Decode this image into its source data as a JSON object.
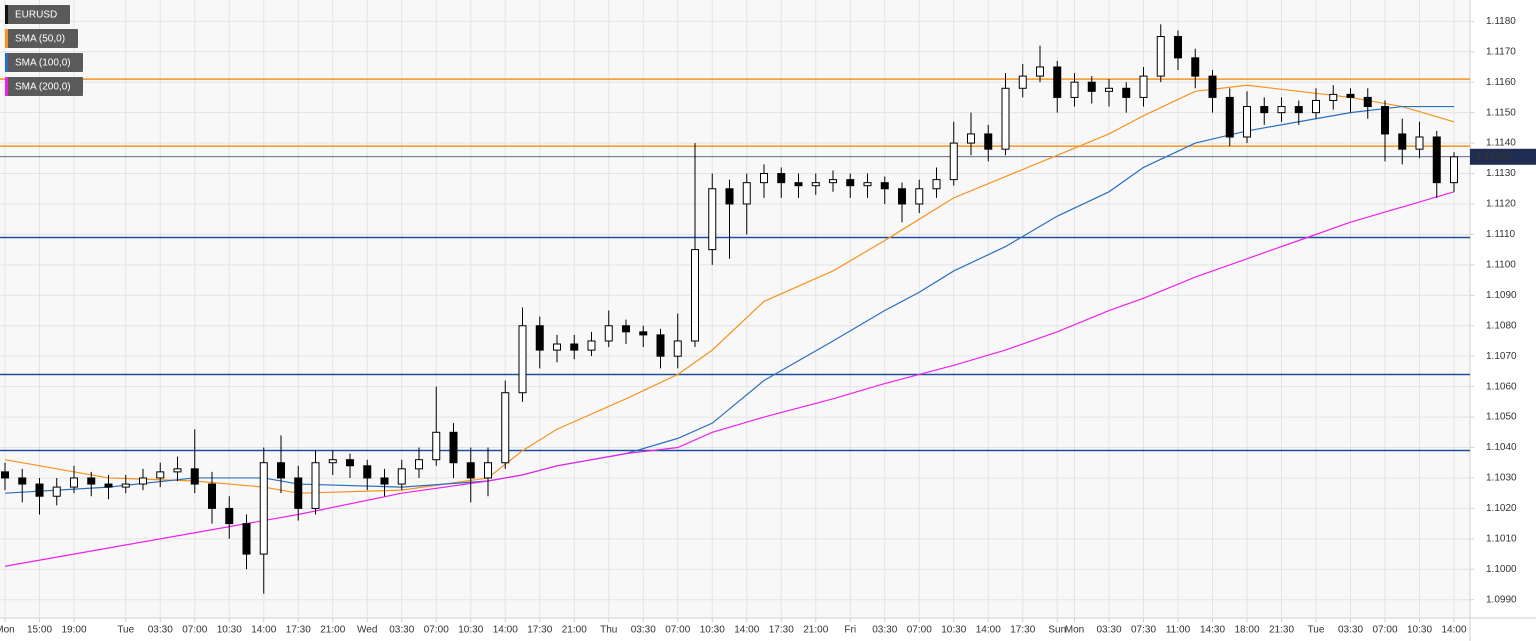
{
  "chart_data": {
    "type": "candlestick",
    "categories": [
      "Mon",
      null,
      "15:00",
      null,
      "19:00",
      null,
      null,
      "Tue",
      null,
      "03:30",
      null,
      "07:00",
      null,
      "10:30",
      null,
      "14:00",
      null,
      "17:30",
      null,
      "21:00",
      null,
      "Wed",
      null,
      "03:30",
      null,
      "07:00",
      null,
      "10:30",
      null,
      "14:00",
      null,
      "17:30",
      null,
      "21:00",
      null,
      "Thu",
      null,
      "03:30",
      null,
      "07:00",
      null,
      "10:30",
      null,
      "14:00",
      null,
      "17:30",
      null,
      "21:00",
      null,
      "Fri",
      null,
      "03:30",
      null,
      "07:00",
      null,
      "10:30",
      null,
      "14:00",
      null,
      "17:30",
      null,
      "Sun",
      "Mon",
      null,
      "03:30",
      null,
      "07:30",
      null,
      "11:00",
      null,
      "14:30",
      null,
      "18:00",
      null,
      "21:30",
      null,
      "Tue",
      null,
      "03:30",
      null,
      "07:00",
      null,
      "10:30",
      null,
      "14:00"
    ],
    "series": [
      {
        "name": "EURUSD",
        "color": "#000000",
        "open": [
          1.1032,
          1.103,
          1.1028,
          1.1024,
          1.1027,
          1.103,
          1.1028,
          1.1027,
          1.1028,
          1.103,
          1.1032,
          1.1033,
          1.1028,
          1.102,
          1.1015,
          1.1005,
          1.1035,
          1.103,
          1.102,
          1.1035,
          1.1036,
          1.1034,
          1.103,
          1.1028,
          1.1033,
          1.1036,
          1.1045,
          1.1035,
          1.103,
          1.1035,
          1.1058,
          1.108,
          1.1072,
          1.1074,
          1.1072,
          1.1075,
          1.108,
          1.1078,
          1.1077,
          1.107,
          1.1075,
          1.1105,
          1.1125,
          1.112,
          1.1127,
          1.113,
          1.1127,
          1.1126,
          1.1127,
          1.1128,
          1.1126,
          1.1127,
          1.1125,
          1.112,
          1.1125,
          1.1128,
          1.114,
          1.1143,
          1.1138,
          1.1158,
          1.1162,
          1.1165,
          1.1155,
          1.116,
          1.1157,
          1.1158,
          1.1155,
          1.1162,
          1.1175,
          1.1168,
          1.1162,
          1.1155,
          1.1142,
          1.1152,
          1.115,
          1.1152,
          1.115,
          1.1154,
          1.1156,
          1.1155,
          1.1152,
          1.1143,
          1.1138,
          1.1142,
          1.1127
        ],
        "high": [
          1.1035,
          1.1033,
          1.103,
          1.103,
          1.1034,
          1.1032,
          1.1031,
          1.1031,
          1.1033,
          1.1035,
          1.1037,
          1.1046,
          1.1032,
          1.1024,
          1.1018,
          1.104,
          1.1044,
          1.1034,
          1.1039,
          1.1039,
          1.1038,
          1.1036,
          1.1033,
          1.1036,
          1.104,
          1.106,
          1.1048,
          1.104,
          1.104,
          1.1062,
          1.1086,
          1.1083,
          1.1077,
          1.1077,
          1.1078,
          1.1085,
          1.1082,
          1.108,
          1.1079,
          1.1084,
          1.114,
          1.113,
          1.1128,
          1.113,
          1.1133,
          1.1132,
          1.113,
          1.113,
          1.1131,
          1.113,
          1.113,
          1.1129,
          1.1127,
          1.1128,
          1.1132,
          1.1147,
          1.115,
          1.1146,
          1.1163,
          1.1166,
          1.1172,
          1.1167,
          1.1163,
          1.1162,
          1.1161,
          1.116,
          1.1165,
          1.1179,
          1.1177,
          1.1171,
          1.1164,
          1.1158,
          1.1157,
          1.1155,
          1.1155,
          1.1154,
          1.1158,
          1.1159,
          1.1158,
          1.1158,
          1.1154,
          1.1148,
          1.1147,
          1.1144,
          1.1137
        ],
        "low": [
          1.1026,
          1.1022,
          1.1018,
          1.1021,
          1.1025,
          1.1024,
          1.1023,
          1.1025,
          1.1026,
          1.1027,
          1.1029,
          1.1025,
          1.1015,
          1.101,
          1.1,
          1.0992,
          1.1025,
          1.1016,
          1.1018,
          1.1031,
          1.103,
          1.1026,
          1.1024,
          1.1026,
          1.103,
          1.1034,
          1.103,
          1.1022,
          1.1024,
          1.1033,
          1.1055,
          1.1066,
          1.1068,
          1.1069,
          1.107,
          1.1073,
          1.1074,
          1.1073,
          1.1066,
          1.1066,
          1.1073,
          1.11,
          1.1102,
          1.111,
          1.1122,
          1.1122,
          1.1122,
          1.1123,
          1.1124,
          1.1122,
          1.1122,
          1.112,
          1.1114,
          1.1117,
          1.1122,
          1.1126,
          1.1136,
          1.1134,
          1.1136,
          1.1155,
          1.116,
          1.115,
          1.1152,
          1.1153,
          1.1152,
          1.115,
          1.1152,
          1.116,
          1.1164,
          1.1158,
          1.115,
          1.1139,
          1.114,
          1.1146,
          1.1147,
          1.1146,
          1.1148,
          1.1151,
          1.115,
          1.1148,
          1.1134,
          1.1133,
          1.1135,
          1.1122,
          1.1124
        ],
        "close": [
          1.103,
          1.1028,
          1.1024,
          1.1027,
          1.103,
          1.1028,
          1.1027,
          1.1028,
          1.103,
          1.1032,
          1.1033,
          1.1028,
          1.102,
          1.1015,
          1.1005,
          1.1035,
          1.103,
          1.102,
          1.1035,
          1.1036,
          1.1034,
          1.103,
          1.1028,
          1.1033,
          1.1036,
          1.1045,
          1.1035,
          1.103,
          1.1035,
          1.1058,
          1.108,
          1.1072,
          1.1074,
          1.1072,
          1.1075,
          1.108,
          1.1078,
          1.1077,
          1.107,
          1.1075,
          1.1105,
          1.1125,
          1.112,
          1.1127,
          1.113,
          1.1127,
          1.1126,
          1.1127,
          1.1128,
          1.1126,
          1.1127,
          1.1125,
          1.112,
          1.1125,
          1.1128,
          1.114,
          1.1143,
          1.1138,
          1.1158,
          1.1162,
          1.1165,
          1.1155,
          1.116,
          1.1157,
          1.1158,
          1.1155,
          1.1162,
          1.1175,
          1.1168,
          1.1162,
          1.1155,
          1.1142,
          1.1152,
          1.115,
          1.1152,
          1.115,
          1.1154,
          1.1156,
          1.1155,
          1.1152,
          1.1143,
          1.1138,
          1.1142,
          1.1127,
          1.11355
        ]
      },
      {
        "name": "SMA (50,0)",
        "color": "#f7931e",
        "x": [
          0,
          6,
          11,
          15,
          17,
          23,
          28,
          30,
          32,
          36,
          39,
          41,
          44,
          48,
          51,
          53,
          55,
          58,
          61,
          64,
          66,
          69,
          72,
          75,
          78,
          81,
          84
        ],
        "values": [
          1.1036,
          1.103,
          1.1029,
          1.1027,
          1.1025,
          1.1026,
          1.103,
          1.1039,
          1.1046,
          1.1056,
          1.1064,
          1.1072,
          1.1088,
          1.1098,
          1.1108,
          1.1115,
          1.1122,
          1.1129,
          1.1136,
          1.1143,
          1.1149,
          1.1157,
          1.1159,
          1.1157,
          1.1155,
          1.1152,
          1.1147
        ]
      },
      {
        "name": "SMA (100,0)",
        "color": "#2a6fbf",
        "x": [
          0,
          6,
          11,
          15,
          17,
          23,
          28,
          30,
          32,
          36,
          39,
          41,
          44,
          48,
          51,
          53,
          55,
          58,
          61,
          64,
          66,
          69,
          72,
          75,
          78,
          81,
          84
        ],
        "values": [
          1.1025,
          1.1027,
          1.103,
          1.103,
          1.1028,
          1.1027,
          1.1029,
          1.1031,
          1.1034,
          1.1038,
          1.1043,
          1.1048,
          1.1062,
          1.1075,
          1.1085,
          1.1091,
          1.1098,
          1.1106,
          1.1116,
          1.1124,
          1.1132,
          1.114,
          1.1144,
          1.1147,
          1.115,
          1.1152,
          1.1152
        ]
      },
      {
        "name": "SMA (200,0)",
        "color": "#ee22ee",
        "x": [
          0,
          6,
          11,
          15,
          17,
          23,
          28,
          30,
          32,
          36,
          39,
          41,
          44,
          48,
          51,
          53,
          55,
          58,
          61,
          64,
          66,
          69,
          72,
          75,
          78,
          81,
          84
        ],
        "values": [
          1.1001,
          1.1007,
          1.1012,
          1.1016,
          1.1018,
          1.1025,
          1.1029,
          1.1031,
          1.1034,
          1.1038,
          1.104,
          1.1045,
          1.105,
          1.1056,
          1.1061,
          1.1064,
          1.1067,
          1.1072,
          1.1078,
          1.1085,
          1.1089,
          1.1096,
          1.1102,
          1.1108,
          1.1114,
          1.1119,
          1.1124
        ]
      }
    ],
    "levels": [
      {
        "value": 1.1161,
        "color": "#f7931e"
      },
      {
        "value": 1.1139,
        "color": "#f7931e"
      },
      {
        "value": 1.1109,
        "color": "#1f4e9c"
      },
      {
        "value": 1.1064,
        "color": "#1f4e9c"
      },
      {
        "value": 1.1039,
        "color": "#1f4e9c"
      }
    ],
    "last_price": 1.11355,
    "ylim": [
      1.0984,
      1.1187
    ],
    "yticks": [
      {
        "value": 1.099,
        "label": "1.0990"
      },
      {
        "value": 1.1,
        "label": "1.1000"
      },
      {
        "value": 1.101,
        "label": "1.1010"
      },
      {
        "value": 1.102,
        "label": "1.1020"
      },
      {
        "value": 1.103,
        "label": "1.1030"
      },
      {
        "value": 1.104,
        "label": "1.1040"
      },
      {
        "value": 1.105,
        "label": "1.1050"
      },
      {
        "value": 1.106,
        "label": "1.1060"
      },
      {
        "value": 1.107,
        "label": "1.1070"
      },
      {
        "value": 1.108,
        "label": "1.1080"
      },
      {
        "value": 1.109,
        "label": "1.1090"
      },
      {
        "value": 1.11,
        "label": "1.1100"
      },
      {
        "value": 1.111,
        "label": "1.1110"
      },
      {
        "value": 1.112,
        "label": "1.1120"
      },
      {
        "value": 1.113,
        "label": "1.1130"
      },
      {
        "value": 1.114,
        "label": "1.1140"
      },
      {
        "value": 1.115,
        "label": "1.1150"
      },
      {
        "value": 1.116,
        "label": "1.1160"
      },
      {
        "value": 1.117,
        "label": "1.1170"
      },
      {
        "value": 1.118,
        "label": "1.1180"
      }
    ],
    "grid": true
  }
}
